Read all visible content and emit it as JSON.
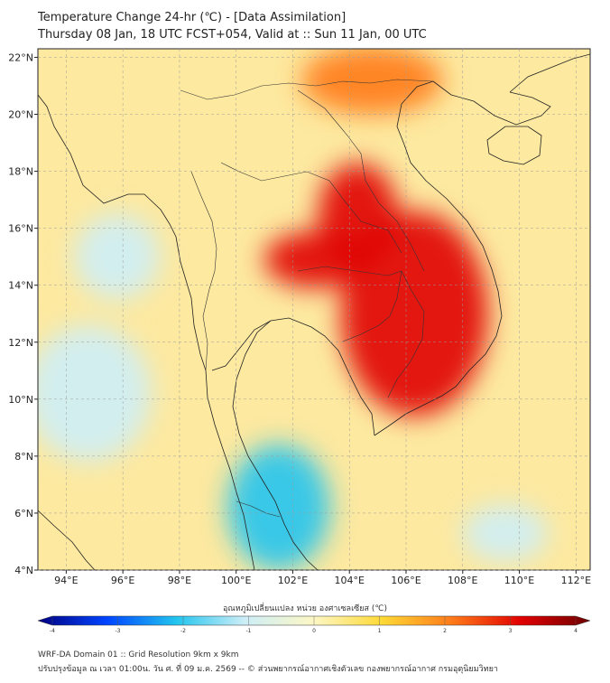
{
  "title": "Temperature Change 24-hr (℃) - [Data Assimilation]",
  "subtitle": "Thursday 08 Jan, 18 UTC FCST+054, Valid at :: Sun 11 Jan, 00 UTC",
  "map": {
    "lon_range": [
      93,
      112.5
    ],
    "lat_range": [
      4,
      22.3
    ],
    "lon_ticks": [
      {
        "value": 94,
        "label": "94°E"
      },
      {
        "value": 96,
        "label": "96°E"
      },
      {
        "value": 98,
        "label": "98°E"
      },
      {
        "value": 100,
        "label": "100°E"
      },
      {
        "value": 102,
        "label": "102°E"
      },
      {
        "value": 104,
        "label": "104°E"
      },
      {
        "value": 106,
        "label": "106°E"
      },
      {
        "value": 108,
        "label": "108°E"
      },
      {
        "value": 110,
        "label": "110°E"
      },
      {
        "value": 112,
        "label": "112°E"
      }
    ],
    "lat_ticks": [
      {
        "value": 4,
        "label": "4°N"
      },
      {
        "value": 6,
        "label": "6°N"
      },
      {
        "value": 8,
        "label": "8°N"
      },
      {
        "value": 10,
        "label": "10°N"
      },
      {
        "value": 12,
        "label": "12°N"
      },
      {
        "value": 14,
        "label": "14°N"
      },
      {
        "value": 16,
        "label": "16°N"
      },
      {
        "value": 18,
        "label": "18°N"
      },
      {
        "value": 20,
        "label": "20°N"
      },
      {
        "value": 22,
        "label": "22°N"
      }
    ],
    "anomalies": [
      {
        "name": "strong-warming-cambodia-vietnam",
        "lon": 106.3,
        "lat": 13.0,
        "rx_deg": 2.6,
        "ry_deg": 3.6,
        "value": 3.3
      },
      {
        "name": "warming-laos",
        "lon": 104.3,
        "lat": 16.5,
        "rx_deg": 1.4,
        "ry_deg": 1.8,
        "value": 3.0
      },
      {
        "name": "warming-northeast-thailand",
        "lon": 102.8,
        "lat": 14.9,
        "rx_deg": 1.8,
        "ry_deg": 1.0,
        "value": 2.8
      },
      {
        "name": "cooling-gulf-of-thailand",
        "lon": 101.5,
        "lat": 6.2,
        "rx_deg": 1.8,
        "ry_deg": 2.2,
        "value": -1.8
      },
      {
        "name": "cooling-andaman-sea",
        "lon": 94.8,
        "lat": 10.2,
        "rx_deg": 2.2,
        "ry_deg": 2.4,
        "value": -1.3
      },
      {
        "name": "cooling-bay-of-bengal-north",
        "lon": 95.8,
        "lat": 15.0,
        "rx_deg": 1.5,
        "ry_deg": 1.5,
        "value": -0.9
      },
      {
        "name": "cooling-south-china-sea",
        "lon": 109.5,
        "lat": 5.3,
        "rx_deg": 1.5,
        "ry_deg": 1.0,
        "value": -0.6
      },
      {
        "name": "warming-yunnan",
        "lon": 104.8,
        "lat": 21.2,
        "rx_deg": 2.5,
        "ry_deg": 1.2,
        "value": 1.5
      }
    ]
  },
  "colorbar": {
    "label": "อุณหภูมิเปลี่ยนแปลง หน่วย องศาเซลเซียส (℃)",
    "min": -4,
    "max": 4,
    "ticks": [
      {
        "value": -4,
        "label": "-4"
      },
      {
        "value": -3,
        "label": "-3"
      },
      {
        "value": -2,
        "label": "-2"
      },
      {
        "value": -1,
        "label": "-1"
      },
      {
        "value": 0,
        "label": "0"
      },
      {
        "value": 1,
        "label": "1"
      },
      {
        "value": 2,
        "label": "2"
      },
      {
        "value": 3,
        "label": "3"
      },
      {
        "value": 4,
        "label": "4"
      }
    ],
    "colors": [
      "#00007f",
      "#0044ff",
      "#22c4ee",
      "#cdeef7",
      "#fdf7c4",
      "#fdd835",
      "#ff7a1a",
      "#e00000",
      "#6e0000"
    ]
  },
  "footer": {
    "line1": "WRF-DA Domain 01 :: Grid Resolution 9km x 9km",
    "line2": "ปรับปรุงข้อมูล ณ เวลา 01:00น. วัน ศ. ที่ 09 ม.ค. 2569 -- © ส่วนพยากรณ์อากาศเชิงตัวเลข กองพยากรณ์อากาศ กรมอุตุนิยมวิทยา"
  }
}
